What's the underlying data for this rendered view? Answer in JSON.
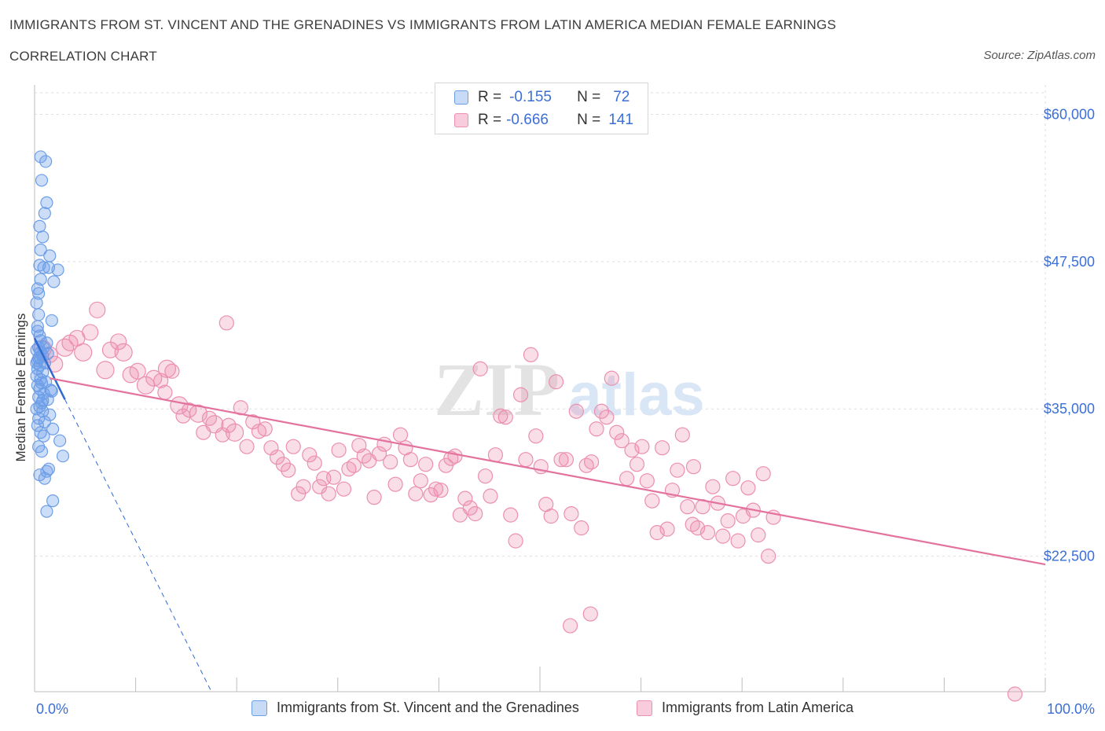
{
  "header": {
    "title": "IMMIGRANTS FROM ST. VINCENT AND THE GRENADINES VS IMMIGRANTS FROM LATIN AMERICA MEDIAN FEMALE EARNINGS",
    "subtitle": "CORRELATION CHART",
    "source": "Source: ZipAtlas.com"
  },
  "legend": {
    "rows": [
      {
        "r_label": "R =",
        "r_value": "-0.155",
        "n_label": "N =",
        "n_value": "72"
      },
      {
        "r_label": "R =",
        "r_value": "-0.666",
        "n_label": "N =",
        "n_value": "141"
      }
    ]
  },
  "watermark": {
    "zip": "ZIP",
    "atlas": "atlas"
  },
  "colors": {
    "blue": "#6c9ee8",
    "blue_fill": "rgba(108,158,232,0.35)",
    "blue_line": "#2f6ad0",
    "pink": "#ec8fb0",
    "pink_fill": "rgba(236,143,176,0.30)",
    "pink_line": "#e3739d",
    "axis_text": "#3b6fd6",
    "grid": "#dedede"
  },
  "chart_data": {
    "type": "scatter",
    "title": "IMMIGRANTS FROM ST. VINCENT AND THE GRENADINES VS IMMIGRANTS FROM LATIN AMERICA MEDIAN FEMALE EARNINGS",
    "xlabel": "",
    "ylabel": "Median Female Earnings",
    "xlim": [
      0,
      100
    ],
    "ylim": [
      11000,
      62500
    ],
    "x_tick_labels": [
      "0.0%",
      "100.0%"
    ],
    "y_ticks": [
      22500,
      35000,
      47500,
      60000
    ],
    "y_tick_labels": [
      "$22,500",
      "$35,000",
      "$47,500",
      "$60,000"
    ],
    "grid": true,
    "legend_placement": "top-center",
    "series": [
      {
        "name": "Immigrants from St. Vincent and the Grenadines",
        "color": "#6c9ee8",
        "points": [
          [
            0.6,
            56400
          ],
          [
            1.1,
            56000
          ],
          [
            0.7,
            54400
          ],
          [
            1.2,
            52500
          ],
          [
            1.0,
            51600
          ],
          [
            0.5,
            50500
          ],
          [
            0.8,
            49600
          ],
          [
            0.6,
            48500
          ],
          [
            1.5,
            48000
          ],
          [
            0.5,
            47200
          ],
          [
            0.9,
            47000
          ],
          [
            1.4,
            47000
          ],
          [
            2.3,
            46800
          ],
          [
            0.6,
            46000
          ],
          [
            1.9,
            45800
          ],
          [
            0.3,
            45200
          ],
          [
            0.4,
            44800
          ],
          [
            0.2,
            44000
          ],
          [
            0.4,
            43000
          ],
          [
            1.7,
            42500
          ],
          [
            0.3,
            42000
          ],
          [
            0.5,
            41200
          ],
          [
            0.6,
            40800
          ],
          [
            1.2,
            40600
          ],
          [
            0.4,
            40200
          ],
          [
            0.2,
            40000
          ],
          [
            0.6,
            39800
          ],
          [
            0.8,
            39500
          ],
          [
            0.4,
            39300
          ],
          [
            0.3,
            39100
          ],
          [
            0.2,
            38900
          ],
          [
            0.5,
            38700
          ],
          [
            0.3,
            38400
          ],
          [
            0.8,
            38100
          ],
          [
            0.2,
            37800
          ],
          [
            0.6,
            37500
          ],
          [
            1.1,
            37300
          ],
          [
            0.3,
            37000
          ],
          [
            0.5,
            36700
          ],
          [
            1.7,
            36500
          ],
          [
            0.9,
            36300
          ],
          [
            0.4,
            36000
          ],
          [
            1.3,
            35800
          ],
          [
            0.7,
            35500
          ],
          [
            0.5,
            35200
          ],
          [
            0.2,
            35000
          ],
          [
            0.8,
            34800
          ],
          [
            1.5,
            34500
          ],
          [
            0.4,
            34200
          ],
          [
            1.0,
            33900
          ],
          [
            0.3,
            33600
          ],
          [
            1.8,
            33300
          ],
          [
            0.6,
            33000
          ],
          [
            0.9,
            32700
          ],
          [
            2.5,
            32300
          ],
          [
            0.4,
            31800
          ],
          [
            0.7,
            31400
          ],
          [
            2.8,
            31000
          ],
          [
            1.4,
            29900
          ],
          [
            1.2,
            29700
          ],
          [
            0.5,
            29400
          ],
          [
            1.0,
            29100
          ],
          [
            1.8,
            27200
          ],
          [
            1.2,
            26300
          ],
          [
            0.9,
            40200
          ],
          [
            1.3,
            39700
          ],
          [
            0.5,
            39400
          ],
          [
            1.0,
            38900
          ],
          [
            0.7,
            37200
          ],
          [
            1.6,
            36600
          ],
          [
            0.3,
            41600
          ],
          [
            0.8,
            35700
          ]
        ]
      },
      {
        "name": "Immigrants from Latin America",
        "color": "#ec8fb0",
        "points": [
          [
            0.8,
            40100
          ],
          [
            1.5,
            39600
          ],
          [
            2.0,
            38800
          ],
          [
            3.0,
            40200
          ],
          [
            3.5,
            40600
          ],
          [
            4.2,
            41000
          ],
          [
            4.8,
            39800
          ],
          [
            5.5,
            41500
          ],
          [
            6.2,
            43400
          ],
          [
            7.0,
            38300
          ],
          [
            7.5,
            40000
          ],
          [
            8.3,
            40700
          ],
          [
            8.8,
            39800
          ],
          [
            9.5,
            37900
          ],
          [
            10.2,
            38200
          ],
          [
            11.0,
            37000
          ],
          [
            11.8,
            37600
          ],
          [
            12.5,
            37400
          ],
          [
            13.1,
            38400
          ],
          [
            13.6,
            38200
          ],
          [
            12.9,
            36400
          ],
          [
            14.3,
            35300
          ],
          [
            14.7,
            34400
          ],
          [
            15.3,
            34900
          ],
          [
            16.2,
            34600
          ],
          [
            16.7,
            33000
          ],
          [
            17.3,
            34200
          ],
          [
            17.8,
            33700
          ],
          [
            18.6,
            32800
          ],
          [
            19.2,
            33600
          ],
          [
            19.8,
            33000
          ],
          [
            20.4,
            35100
          ],
          [
            21.0,
            31800
          ],
          [
            21.6,
            33900
          ],
          [
            22.2,
            33100
          ],
          [
            22.8,
            33300
          ],
          [
            23.4,
            31700
          ],
          [
            24.0,
            30900
          ],
          [
            24.6,
            30300
          ],
          [
            25.1,
            29800
          ],
          [
            25.6,
            31800
          ],
          [
            26.1,
            27800
          ],
          [
            26.6,
            28400
          ],
          [
            27.2,
            31100
          ],
          [
            27.7,
            30400
          ],
          [
            28.2,
            28400
          ],
          [
            28.6,
            29100
          ],
          [
            29.1,
            27800
          ],
          [
            29.6,
            29200
          ],
          [
            30.1,
            31500
          ],
          [
            30.6,
            28200
          ],
          [
            31.1,
            29900
          ],
          [
            31.6,
            30200
          ],
          [
            32.1,
            31900
          ],
          [
            32.6,
            31000
          ],
          [
            33.1,
            30600
          ],
          [
            33.6,
            27500
          ],
          [
            34.1,
            31200
          ],
          [
            34.6,
            32000
          ],
          [
            35.2,
            30500
          ],
          [
            35.7,
            28600
          ],
          [
            36.2,
            32800
          ],
          [
            36.7,
            31700
          ],
          [
            37.2,
            30700
          ],
          [
            37.7,
            27800
          ],
          [
            38.2,
            28900
          ],
          [
            38.7,
            30300
          ],
          [
            39.2,
            27700
          ],
          [
            39.7,
            28200
          ],
          [
            40.2,
            28100
          ],
          [
            40.7,
            30200
          ],
          [
            41.2,
            30800
          ],
          [
            41.6,
            31000
          ],
          [
            42.1,
            26000
          ],
          [
            42.6,
            27400
          ],
          [
            43.1,
            26600
          ],
          [
            43.6,
            26100
          ],
          [
            44.1,
            38400
          ],
          [
            44.6,
            29300
          ],
          [
            45.1,
            27600
          ],
          [
            45.6,
            31100
          ],
          [
            46.1,
            34400
          ],
          [
            46.6,
            34300
          ],
          [
            47.1,
            26000
          ],
          [
            47.6,
            23800
          ],
          [
            48.1,
            36200
          ],
          [
            48.6,
            30700
          ],
          [
            49.1,
            39600
          ],
          [
            49.6,
            32700
          ],
          [
            50.1,
            30100
          ],
          [
            50.6,
            26900
          ],
          [
            51.1,
            25900
          ],
          [
            51.6,
            37300
          ],
          [
            52.1,
            30700
          ],
          [
            52.6,
            30700
          ],
          [
            53.1,
            26100
          ],
          [
            53.6,
            34800
          ],
          [
            54.1,
            24900
          ],
          [
            54.6,
            30200
          ],
          [
            55.1,
            30500
          ],
          [
            55.6,
            33300
          ],
          [
            56.1,
            34800
          ],
          [
            56.6,
            34300
          ],
          [
            57.1,
            37600
          ],
          [
            57.6,
            33000
          ],
          [
            58.1,
            32300
          ],
          [
            58.6,
            29100
          ],
          [
            59.1,
            31500
          ],
          [
            59.6,
            30300
          ],
          [
            60.1,
            31800
          ],
          [
            60.6,
            28900
          ],
          [
            61.1,
            27200
          ],
          [
            61.6,
            24500
          ],
          [
            62.1,
            31700
          ],
          [
            62.6,
            24800
          ],
          [
            63.1,
            28100
          ],
          [
            63.6,
            29800
          ],
          [
            64.1,
            32800
          ],
          [
            64.6,
            26700
          ],
          [
            65.1,
            25200
          ],
          [
            65.6,
            24900
          ],
          [
            66.1,
            26700
          ],
          [
            66.6,
            24500
          ],
          [
            67.1,
            28400
          ],
          [
            67.6,
            27000
          ],
          [
            68.1,
            24200
          ],
          [
            68.6,
            25500
          ],
          [
            69.1,
            29100
          ],
          [
            69.6,
            23800
          ],
          [
            70.1,
            25900
          ],
          [
            70.6,
            28300
          ],
          [
            71.1,
            26400
          ],
          [
            71.6,
            24300
          ],
          [
            72.1,
            29500
          ],
          [
            72.6,
            22500
          ],
          [
            73.1,
            25800
          ],
          [
            19.0,
            42300
          ],
          [
            53.0,
            16600
          ],
          [
            55.0,
            17600
          ],
          [
            65.2,
            30100
          ],
          [
            97.0,
            10800
          ]
        ]
      }
    ],
    "trend_lines": [
      {
        "series": "Immigrants from St. Vincent and the Grenadines",
        "x": [
          0,
          3
        ],
        "y": [
          41000,
          35800
        ],
        "extended_dashed_to": [
          17.5,
          11000
        ]
      },
      {
        "series": "Immigrants from Latin America",
        "x": [
          1.5,
          100
        ],
        "y": [
          37600,
          21800
        ]
      }
    ]
  }
}
